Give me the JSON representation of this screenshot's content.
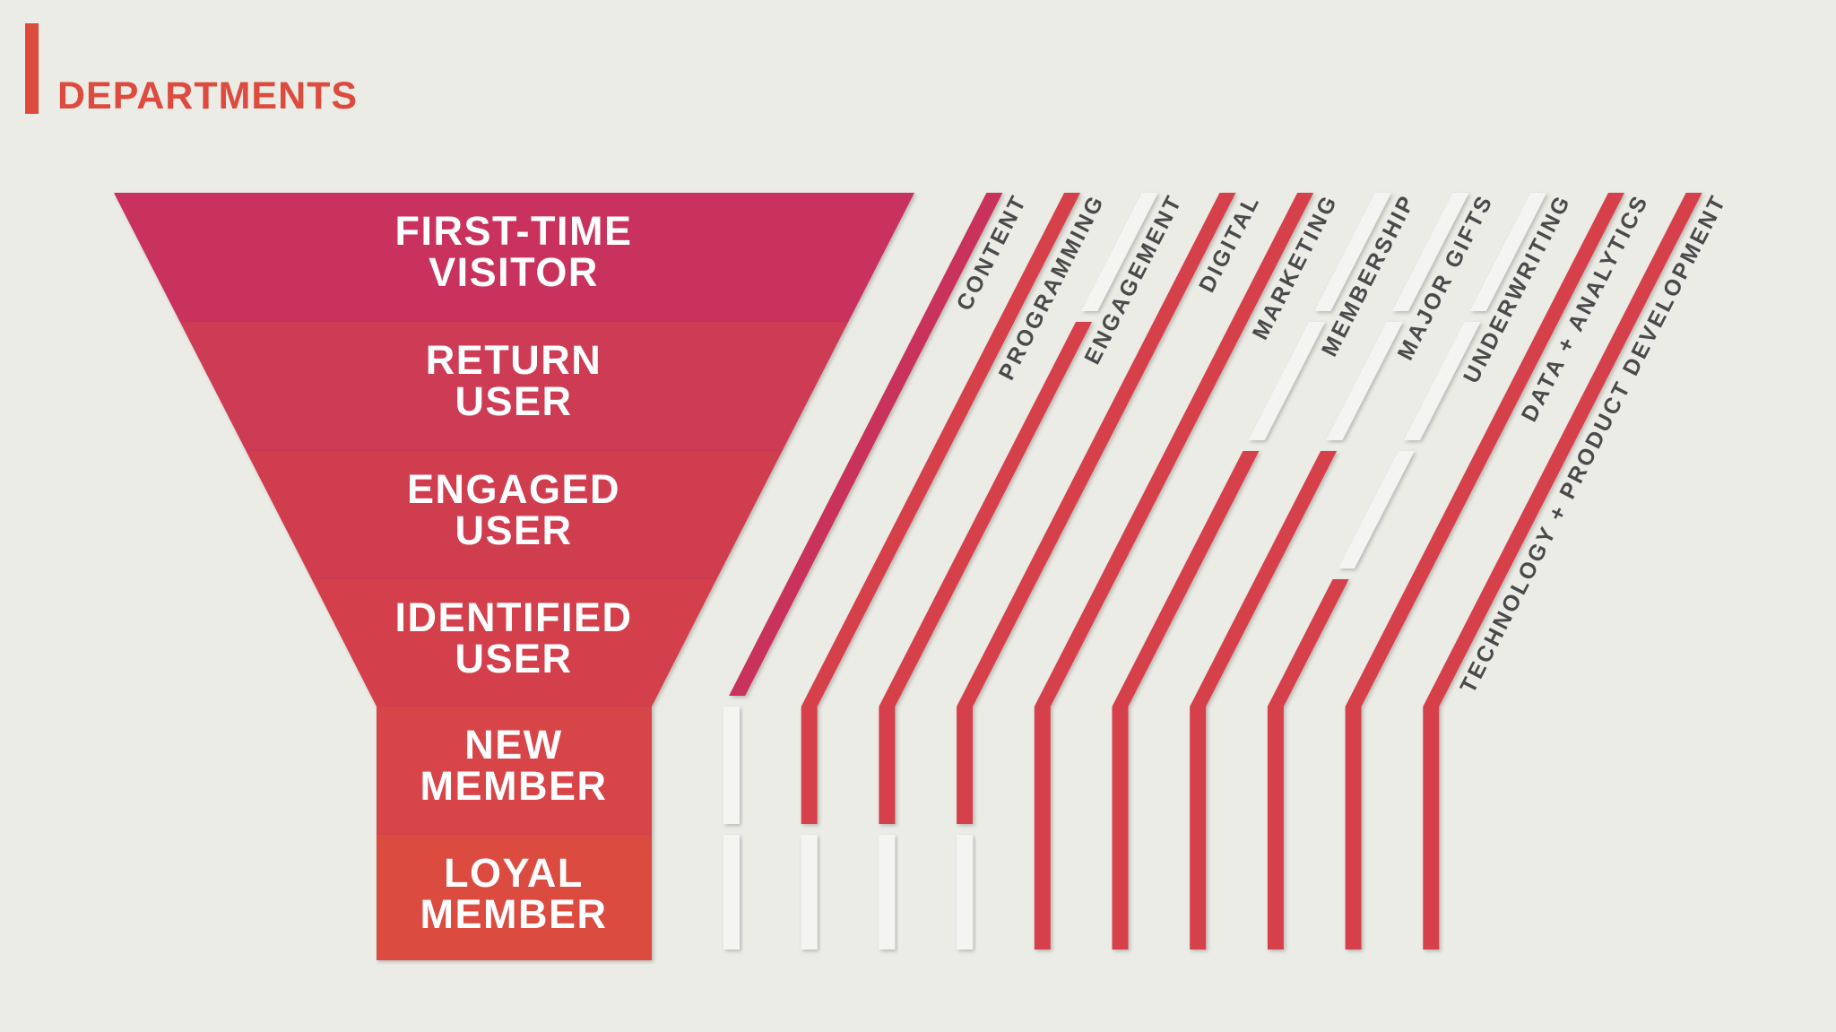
{
  "title": "DEPARTMENTS",
  "colors": {
    "background": "#ecece6",
    "accent": "#dd4b3f",
    "active_line": "#d6404c",
    "content_line": "#c9305a",
    "inactive_line": "#f4f4f2",
    "label": "#4a4a4c"
  },
  "funnel": {
    "stages": [
      {
        "line1": "FIRST-TIME",
        "line2": "VISITOR",
        "color": "#c9335c"
      },
      {
        "line1": "RETURN",
        "line2": "USER",
        "color": "#cd3a55"
      },
      {
        "line1": "ENGAGED",
        "line2": "USER",
        "color": "#d03c50"
      },
      {
        "line1": "IDENTIFIED",
        "line2": "USER",
        "color": "#d33f4c"
      },
      {
        "line1": "NEW",
        "line2": "MEMBER",
        "color": "#d7444a"
      },
      {
        "line1": "LOYAL",
        "line2": "MEMBER",
        "color": "#dc4c41"
      }
    ]
  },
  "departments": [
    {
      "name": "CONTENT",
      "stages": [
        1,
        1,
        1,
        1,
        0,
        0
      ],
      "color": "#c9305a"
    },
    {
      "name": "PROGRAMMING",
      "stages": [
        1,
        1,
        1,
        1,
        1,
        0
      ],
      "color": "#d6404c"
    },
    {
      "name": "ENGAGEMENT",
      "stages": [
        0,
        1,
        1,
        1,
        1,
        0
      ],
      "color": "#d6404c"
    },
    {
      "name": "DIGITAL",
      "stages": [
        1,
        1,
        1,
        1,
        1,
        0
      ],
      "color": "#d6404c"
    },
    {
      "name": "MARKETING",
      "stages": [
        1,
        1,
        1,
        1,
        1,
        1
      ],
      "color": "#d6404c"
    },
    {
      "name": "MEMBERSHIP",
      "stages": [
        0,
        0,
        1,
        1,
        1,
        1
      ],
      "color": "#d6404c"
    },
    {
      "name": "MAJOR GIFTS",
      "stages": [
        0,
        0,
        1,
        1,
        1,
        1
      ],
      "color": "#d6404c"
    },
    {
      "name": "UNDERWRITING",
      "stages": [
        0,
        0,
        0,
        1,
        1,
        1
      ],
      "color": "#d6404c"
    },
    {
      "name": "DATA + ANALYTICS",
      "stages": [
        1,
        1,
        1,
        1,
        1,
        1
      ],
      "color": "#d6404c"
    },
    {
      "name": "TECHNOLOGY + PRODUCT DEVELOPMENT",
      "stages": [
        1,
        1,
        1,
        1,
        1,
        1
      ],
      "color": "#d6404c"
    }
  ]
}
